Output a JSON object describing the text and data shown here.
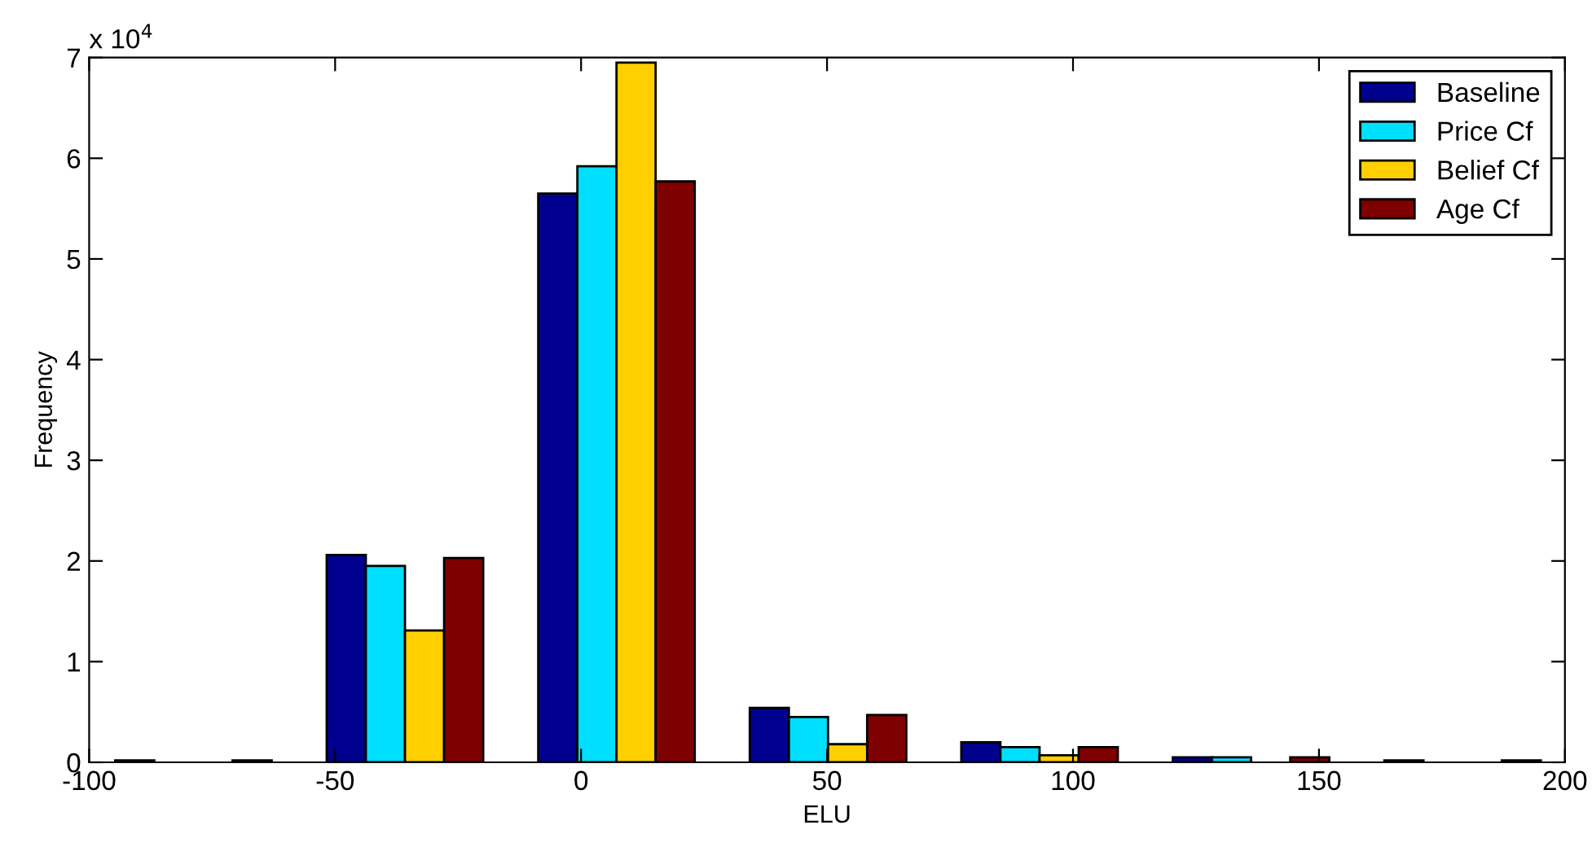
{
  "chart_data": {
    "type": "bar",
    "xlabel": "ELU",
    "ylabel": "Frequency",
    "x": [
      -78.8,
      -35.8,
      7.2,
      50.2,
      93.2,
      136.2,
      179.2
    ],
    "series": [
      {
        "name": "Baseline",
        "color": "#00008f",
        "values": [
          0.02,
          2.06,
          5.65,
          0.54,
          0.2,
          0.05,
          0.02
        ]
      },
      {
        "name": "Price Cf",
        "color": "#00dfff",
        "values": [
          null,
          1.95,
          5.92,
          0.45,
          0.15,
          0.05,
          null
        ]
      },
      {
        "name": "Belief Cf",
        "color": "#ffcf00",
        "values": [
          null,
          1.31,
          6.95,
          0.18,
          0.07,
          null,
          null
        ]
      },
      {
        "name": "Age Cf",
        "color": "#7f0000",
        "values": [
          0.02,
          2.03,
          5.77,
          0.47,
          0.15,
          0.05,
          0.02
        ]
      }
    ],
    "xlim": [
      -100,
      200
    ],
    "xticks": [
      -100,
      -50,
      0,
      50,
      100,
      150,
      200
    ],
    "ylim": [
      0,
      7
    ],
    "yticks": [
      0,
      1,
      2,
      3,
      4,
      5,
      6,
      7
    ],
    "annotations": [
      "x 10$^{4}$"
    ],
    "legend": "top right",
    "grid": false
  }
}
